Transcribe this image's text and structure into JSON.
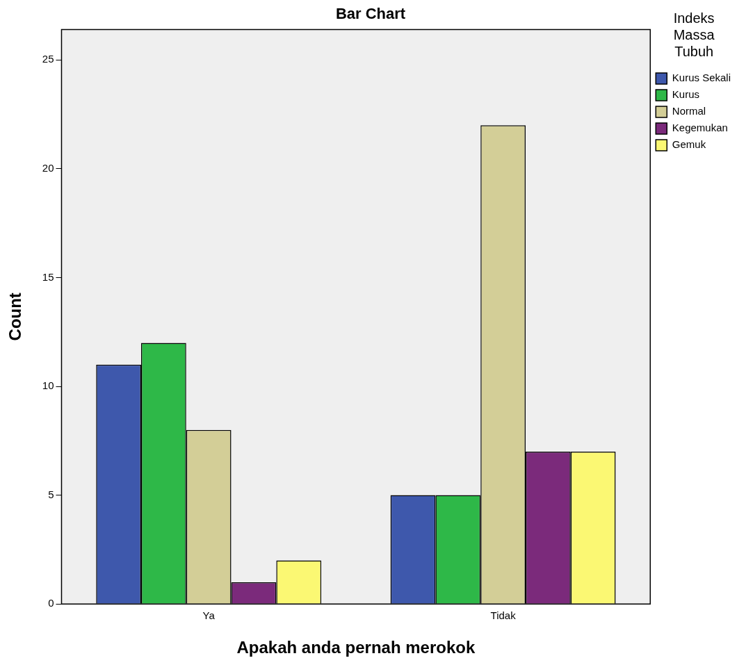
{
  "chart_data": {
    "type": "bar",
    "title": "Bar Chart",
    "xlabel": "Apakah anda pernah merokok",
    "ylabel": "Count",
    "legend_title": "Indeks Massa Tubuh",
    "categories": [
      "Ya",
      "Tidak"
    ],
    "series": [
      {
        "name": "Kurus Sekali",
        "color": "#3e58ac",
        "values": [
          11,
          5
        ]
      },
      {
        "name": "Kurus",
        "color": "#2eb848",
        "values": [
          12,
          5
        ]
      },
      {
        "name": "Normal",
        "color": "#d3ce97",
        "values": [
          8,
          22
        ]
      },
      {
        "name": "Kegemukan",
        "color": "#7b2a7b",
        "values": [
          1,
          7
        ]
      },
      {
        "name": "Gemuk",
        "color": "#fbf873",
        "values": [
          2,
          7
        ]
      }
    ],
    "ylim": [
      0,
      26.4
    ],
    "yticks": [
      0,
      5,
      10,
      15,
      20,
      25
    ],
    "grid": false,
    "legend": "top right"
  }
}
